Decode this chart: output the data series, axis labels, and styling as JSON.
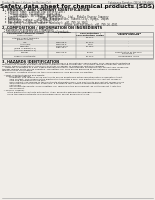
{
  "bg_color": "#f0ede8",
  "header_left": "Product Name: Lithium Ion Battery Cell",
  "header_right_line1": "Substance Number: DBI25-005-0010",
  "header_right_line2": "Established / Revision: Dec.7.2010",
  "title": "Safety data sheet for chemical products (SDS)",
  "section1_title": "1. PRODUCT AND COMPANY IDENTIFICATION",
  "section1_lines": [
    "  • Product name: Lithium Ion Battery Cell",
    "  • Product code: Cylindrical-type cell",
    "       (INF18650U, INF18650L, INF18650A)",
    "  • Company name:       Sanyo Electric Co., Ltd., Mobile Energy Company",
    "  • Address:              2001, Kamizumarion, Sumoto-City, Hyogo, Japan",
    "  • Telephone number:  +81-799-26-4111",
    "  • Fax number:  +81-799-26-4121",
    "  • Emergency telephone number (Weekday): +81-799-26-3562",
    "                                         (Night and holiday): +81-799-26-4101"
  ],
  "section2_title": "2. COMPOSITION / INFORMATION ON INGREDIENTS",
  "section2_sub1": "  • Substance or preparation: Preparation",
  "section2_sub2": "  • Information about the chemical nature of product:",
  "table_headers": [
    "Component chemical name",
    "CAS number",
    "Concentration /\nConcentration range",
    "Classification and\nhazard labeling"
  ],
  "table_sub_header": "Several name",
  "table_rows": [
    [
      "Lithium cobalt tantalate\n(LiMnxCo1PO4)",
      "-",
      "30-40%",
      "-"
    ],
    [
      "Iron",
      "7439-89-6",
      "10-20%",
      "-"
    ],
    [
      "Aluminum",
      "7429-90-5",
      "2-6%",
      "-"
    ],
    [
      "Graphite\n(Fluid in graphite-1)\n(Air film graphite-1)",
      "77782-42-5\n7782-44-7",
      "10-25%",
      "-"
    ],
    [
      "Copper",
      "7440-50-8",
      "5-15%",
      "Sensitization of the skin\ngroup No.2"
    ],
    [
      "Organic electrolyte",
      "-",
      "10-20%",
      "Inflammable liquid"
    ]
  ],
  "section3_title": "3. HAZARDS IDENTIFICATION",
  "section3_lines": [
    "    For the battery cell, chemical substances are stored in a hermetically sealed metal case, designed to withstand",
    "temperature changes and pressure-shock conditions during normal use. As a result, during normal use, there is no",
    "physical danger of ignition or explosion and thus no danger of hazardous materials leakage.",
    "    However, if exposed to a fire, added mechanical shocks, decomposed, shorted electric without any measures,",
    "the gas release vents can be operated. The battery cell case will be breached at fire-extreme. Hazardous",
    "materials may be released.",
    "    Moreover, if heated strongly by the surrounding fire, acid gas may be emitted.",
    "",
    "  • Most important hazard and effects:",
    "     Human health effects:",
    "          Inhalation: The release of the electrolyte has an anesthesia action and stimulates a respiratory tract.",
    "          Skin contact: The release of the electrolyte stimulates a skin. The electrolyte skin contact causes a",
    "          sore and stimulation on the skin.",
    "          Eye contact: The release of the electrolyte stimulates eyes. The electrolyte eye contact causes a sore",
    "          and stimulation on the eye. Especially, a substance that causes a strong inflammation of the eye is",
    "          contained.",
    "          Environmental effects: Since a battery cell remains in the environment, do not throw out it into the",
    "          environment.",
    "",
    "  • Specific hazards:",
    "       If the electrolyte contacts with water, it will generate detrimental hydrogen fluoride.",
    "       Since the used electrolyte is inflammable liquid, do not bring close to fire."
  ]
}
